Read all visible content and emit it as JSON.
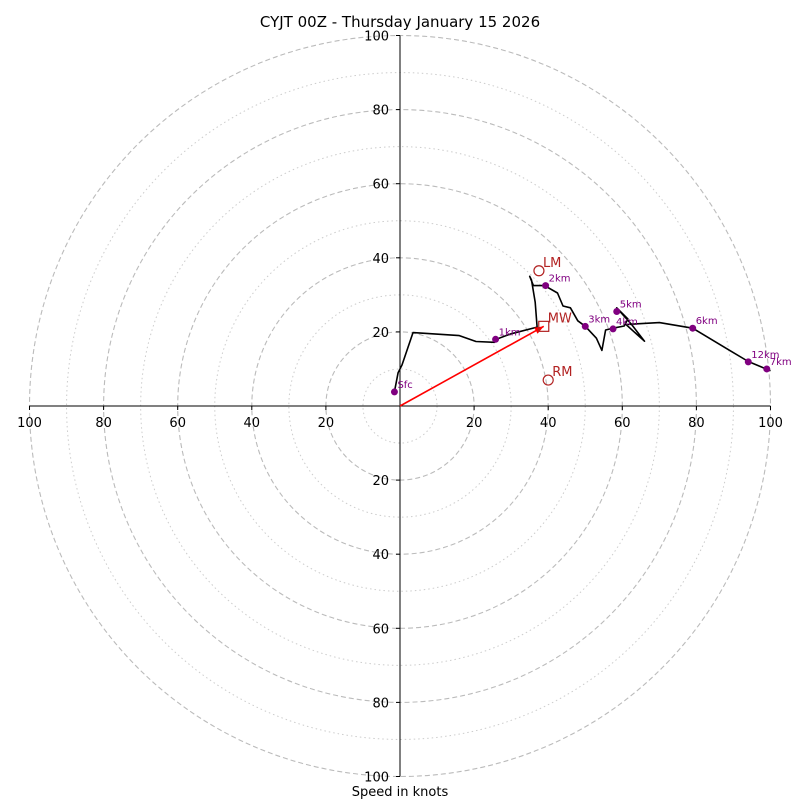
{
  "chart_data": {
    "type": "hodograph",
    "title": "CYJT 00Z - Thursday January 15 2026",
    "xlabel": "Speed in knots",
    "xlim": [
      -100,
      100
    ],
    "ylim": [
      -100,
      100
    ],
    "ring_major": [
      20,
      40,
      60,
      80,
      100
    ],
    "ring_minor": [
      10,
      30,
      50,
      70,
      90
    ],
    "ticks_x": [
      {
        "v": -100,
        "label": "100"
      },
      {
        "v": -80,
        "label": "80"
      },
      {
        "v": -60,
        "label": "60"
      },
      {
        "v": -40,
        "label": "40"
      },
      {
        "v": -20,
        "label": "20"
      },
      {
        "v": 20,
        "label": "20"
      },
      {
        "v": 40,
        "label": "40"
      },
      {
        "v": 60,
        "label": "60"
      },
      {
        "v": 80,
        "label": "80"
      },
      {
        "v": 100,
        "label": "100"
      }
    ],
    "ticks_y": [
      {
        "v": 100,
        "label": "100"
      },
      {
        "v": 80,
        "label": "80"
      },
      {
        "v": 60,
        "label": "60"
      },
      {
        "v": 40,
        "label": "40"
      },
      {
        "v": 20,
        "label": "20"
      },
      {
        "v": -20,
        "label": "20"
      },
      {
        "v": -40,
        "label": "40"
      },
      {
        "v": -60,
        "label": "60"
      },
      {
        "v": -80,
        "label": "80"
      },
      {
        "v": -100,
        "label": "100"
      }
    ],
    "trace": [
      [
        -1.5,
        3.8
      ],
      [
        -0.5,
        9
      ],
      [
        0.5,
        11
      ],
      [
        3.5,
        19.8
      ],
      [
        16,
        19
      ],
      [
        20.5,
        17.4
      ],
      [
        25.5,
        17.2
      ],
      [
        26,
        18
      ],
      [
        30,
        19.5
      ],
      [
        37,
        21.3
      ],
      [
        36.5,
        28
      ],
      [
        35.5,
        34
      ],
      [
        35,
        35
      ],
      [
        36,
        32.5
      ],
      [
        39,
        32.5
      ],
      [
        42.5,
        30.5
      ],
      [
        44,
        27
      ],
      [
        46,
        26.5
      ],
      [
        48,
        23
      ],
      [
        50,
        21.5
      ],
      [
        53,
        18.3
      ],
      [
        54.5,
        15
      ],
      [
        55.5,
        20.5
      ],
      [
        57.5,
        21
      ],
      [
        60.5,
        21.6
      ],
      [
        61.5,
        23.5
      ],
      [
        58.5,
        26.5
      ],
      [
        62.5,
        22
      ],
      [
        66,
        17.5
      ],
      [
        61,
        22
      ],
      [
        70,
        22.5
      ],
      [
        79,
        21
      ],
      [
        89,
        15
      ],
      [
        94,
        12
      ],
      [
        100,
        9.5
      ]
    ],
    "height_markers": [
      {
        "label": "Sfc",
        "u": -1.5,
        "v": 3.8
      },
      {
        "label": "1km",
        "u": 25.8,
        "v": 18.0
      },
      {
        "label": "2km",
        "u": 39.3,
        "v": 32.5
      },
      {
        "label": "3km",
        "u": 50.0,
        "v": 21.5
      },
      {
        "label": "4km",
        "u": 57.5,
        "v": 20.8
      },
      {
        "label": "5km",
        "u": 58.5,
        "v": 25.5
      },
      {
        "label": "6km",
        "u": 79.0,
        "v": 21.0
      },
      {
        "label": "12km",
        "u": 94.0,
        "v": 11.9
      },
      {
        "label": "7km",
        "u": 99.0,
        "v": 10.0
      }
    ],
    "storm_motion": [
      {
        "label": "LM",
        "u": 37.5,
        "v": 36.5,
        "marker": "circle"
      },
      {
        "label": "MW",
        "u": 38.8,
        "v": 21.5,
        "marker": "square"
      },
      {
        "label": "RM",
        "u": 40.0,
        "v": 7.0,
        "marker": "circle"
      }
    ],
    "mean_wind_vector": {
      "u": 38.8,
      "v": 21.5
    },
    "colors": {
      "trace": "#000000",
      "height_marker": "#800080",
      "storm_marker": "#b22222",
      "vector": "#ff0000",
      "grid": "#bbbbbb"
    }
  }
}
